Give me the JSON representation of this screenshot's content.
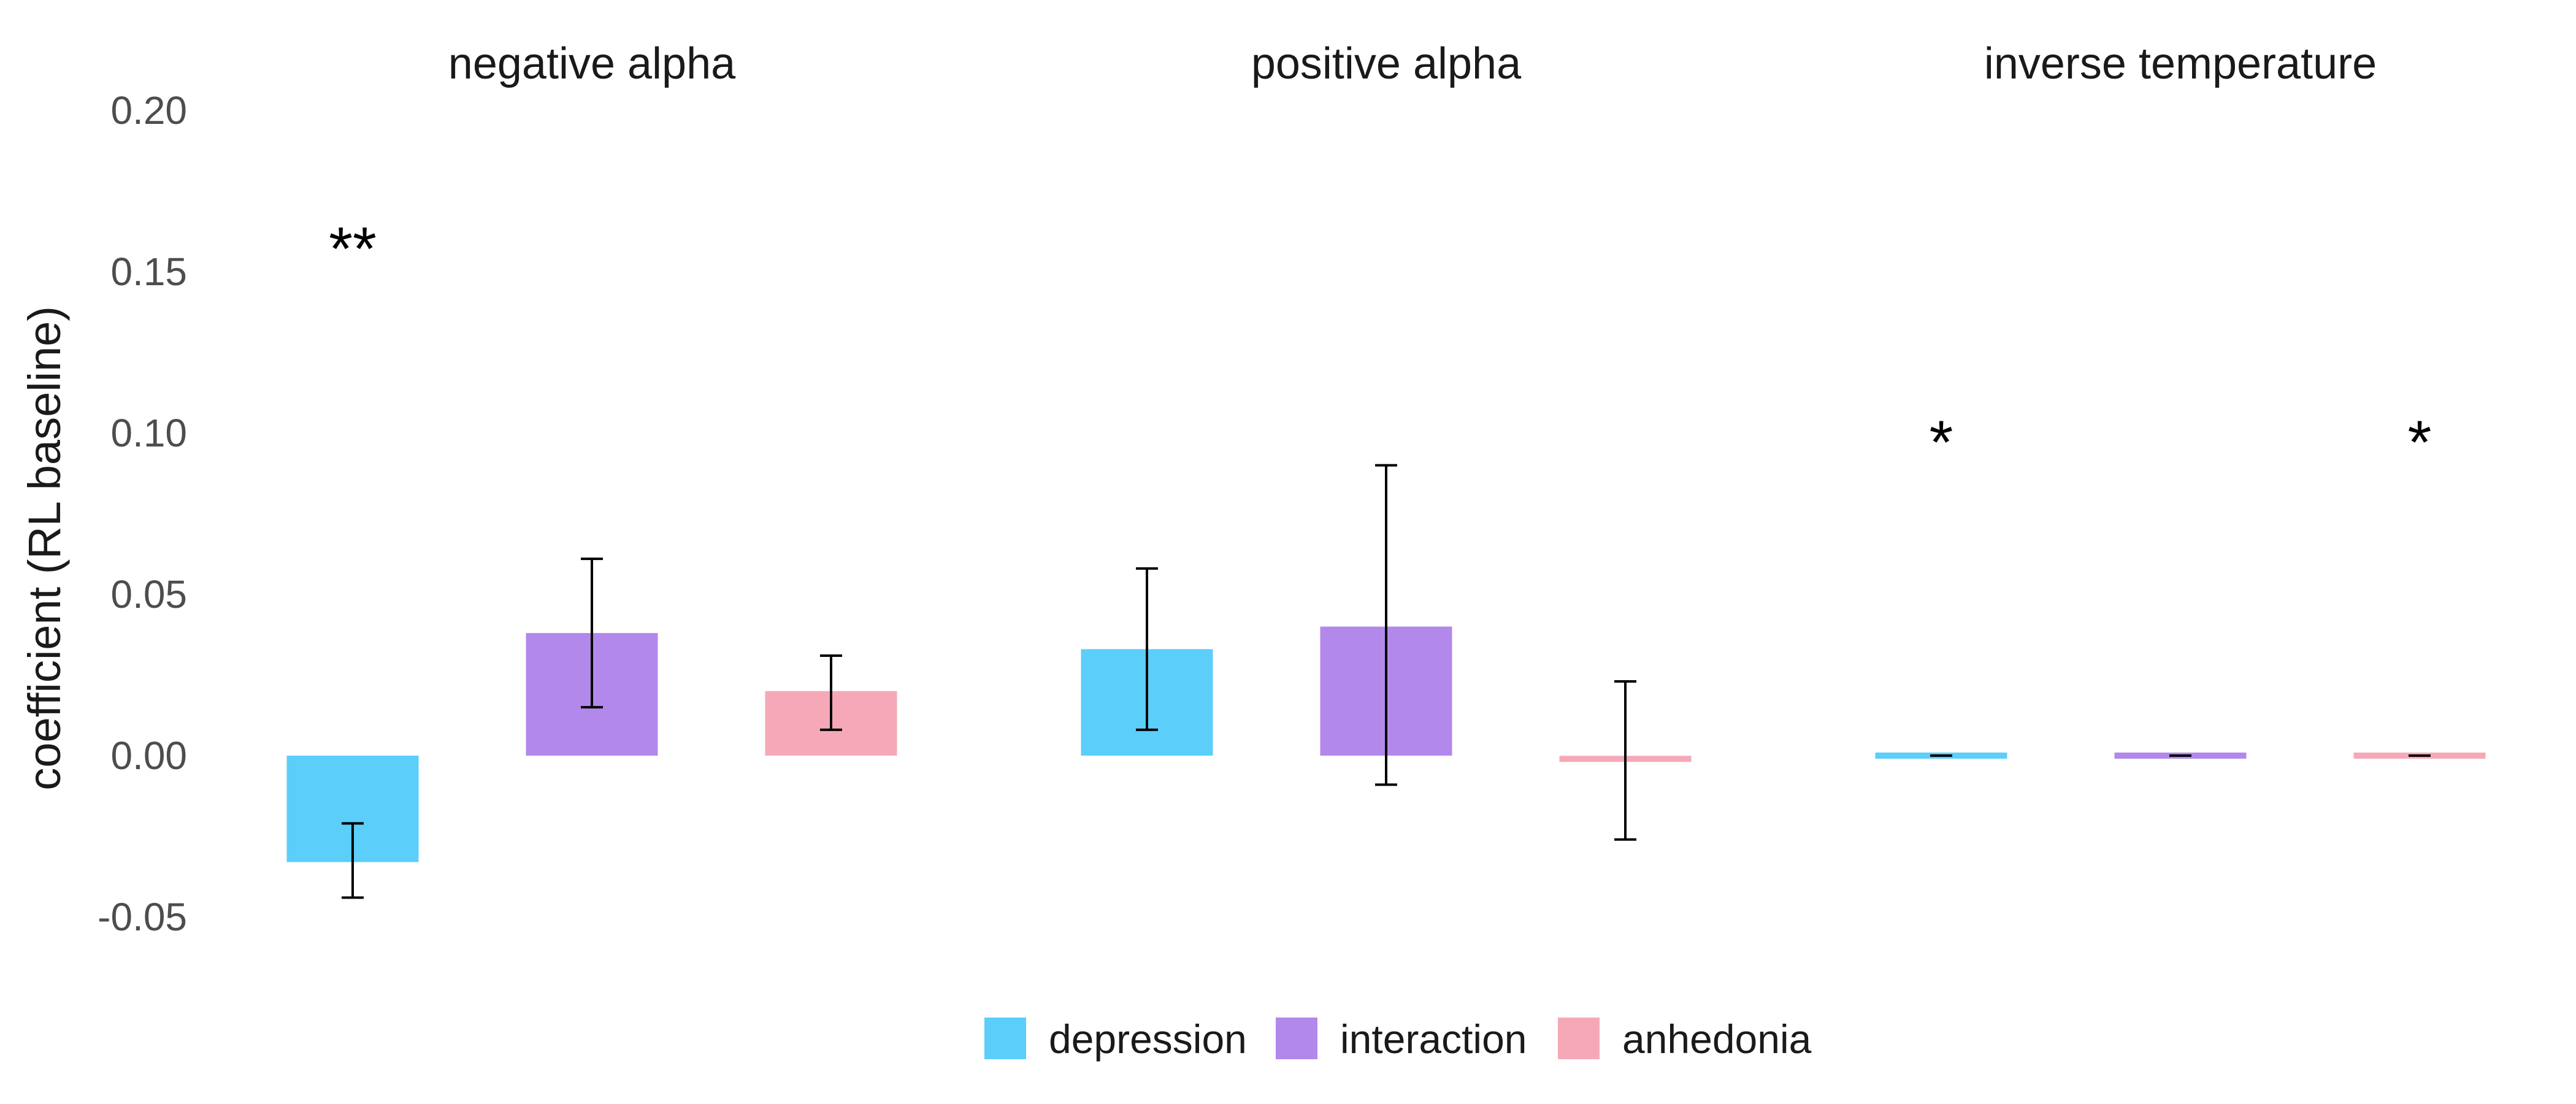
{
  "chart_data": {
    "type": "bar",
    "ylabel": "coefficient (RL baseline)",
    "ylim": [
      -0.06,
      0.2
    ],
    "yticks": [
      -0.05,
      0.0,
      0.05,
      0.1,
      0.15,
      0.2
    ],
    "ytick_labels": [
      "-0.05",
      "0.00",
      "0.05",
      "0.10",
      "0.15",
      "0.20"
    ],
    "grid": false,
    "legend_position": "bottom",
    "series": [
      {
        "name": "depression",
        "color": "#5bcefa"
      },
      {
        "name": "interaction",
        "color": "#b388eb"
      },
      {
        "name": "anhedonia",
        "color": "#f5a9b8"
      }
    ],
    "panels": [
      {
        "title": "negative alpha",
        "bars": [
          {
            "series": "depression",
            "value": -0.033,
            "ci": [
              -0.044,
              -0.021
            ],
            "sig": "**"
          },
          {
            "series": "interaction",
            "value": 0.038,
            "ci": [
              0.015,
              0.061
            ],
            "sig": ""
          },
          {
            "series": "anhedonia",
            "value": 0.02,
            "ci": [
              0.008,
              0.031
            ],
            "sig": ""
          }
        ]
      },
      {
        "title": "positive alpha",
        "bars": [
          {
            "series": "depression",
            "value": 0.033,
            "ci": [
              0.008,
              0.058
            ],
            "sig": ""
          },
          {
            "series": "interaction",
            "value": 0.04,
            "ci": [
              -0.009,
              0.09
            ],
            "sig": ""
          },
          {
            "series": "anhedonia",
            "value": -0.001,
            "ci": [
              -0.026,
              0.023
            ],
            "sig": ""
          }
        ]
      },
      {
        "title": "inverse temperature",
        "bars": [
          {
            "series": "depression",
            "value": 0.0,
            "ci": [
              0.0,
              0.0
            ],
            "sig": "*"
          },
          {
            "series": "interaction",
            "value": 0.0,
            "ci": [
              0.0,
              0.0
            ],
            "sig": ""
          },
          {
            "series": "anhedonia",
            "value": 0.0,
            "ci": [
              0.0,
              0.0
            ],
            "sig": "*"
          }
        ]
      }
    ]
  }
}
